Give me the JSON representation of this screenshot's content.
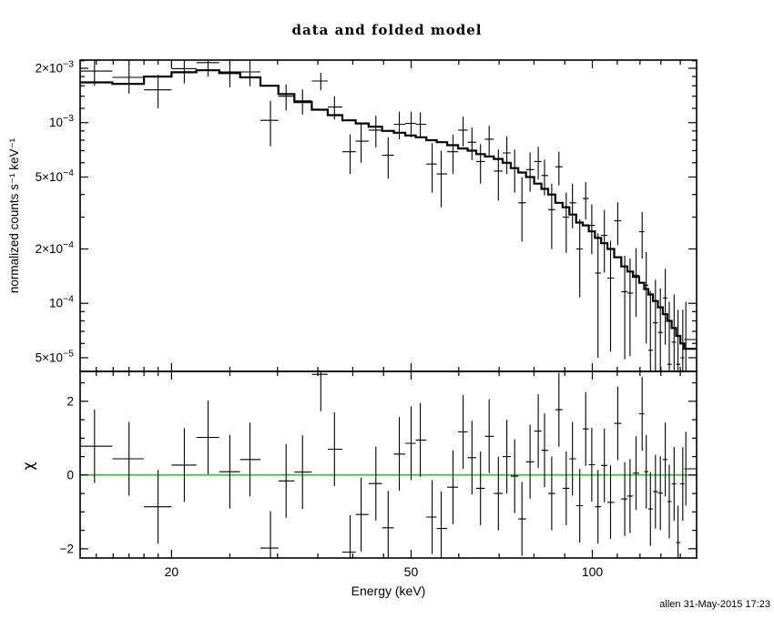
{
  "title": "data and folded model",
  "axes": {
    "x_label": "Energy (keV)",
    "y_label_top": "normalized counts s⁻¹ keV⁻¹",
    "y_label_bottom": "χ"
  },
  "footer": {
    "stamp": "allen 31-May-2015 17:23"
  },
  "colors": {
    "foreground": "#000000",
    "background": "#ffffff",
    "zero_line": "#00cc00"
  },
  "chart_data": [
    {
      "type": "scatter",
      "panel": "top",
      "title": "data and folded model",
      "xlabel": "Energy (keV)",
      "ylabel": "normalized counts s-1 keV-1",
      "xscale": "log",
      "yscale": "log",
      "xlim": [
        14.1,
        149
      ],
      "ylim": [
        4.2e-05,
        0.00222
      ],
      "grid": false,
      "legend": "none",
      "x_major_ticks": [
        {
          "v": 20,
          "label": "20"
        },
        {
          "v": 50,
          "label": "50"
        },
        {
          "v": 100,
          "label": "100"
        }
      ],
      "x_minor_ticks": [
        15,
        16,
        17,
        18,
        19,
        25,
        30,
        35,
        40,
        45,
        60,
        70,
        80,
        90,
        110,
        120,
        130,
        140
      ],
      "y_major_ticks": [
        {
          "v": 0.002,
          "mant": "2×10",
          "exp": "−3"
        },
        {
          "v": 0.001,
          "mant": "10",
          "exp": "−3"
        },
        {
          "v": 0.0005,
          "mant": "5×10",
          "exp": "−4"
        },
        {
          "v": 0.0002,
          "mant": "2×10",
          "exp": "−4"
        },
        {
          "v": 0.0001,
          "mant": "10",
          "exp": "−4"
        },
        {
          "v": 5e-05,
          "mant": "5×10",
          "exp": "−5"
        }
      ],
      "y_minor_ticks": [
        6e-05,
        7e-05,
        8e-05,
        9e-05,
        0.0003,
        0.0004,
        0.0006,
        0.0007,
        0.0008,
        0.0009,
        0.0012,
        0.0014,
        0.0016,
        0.0018,
        0.0022
      ],
      "x": [
        14.9,
        17,
        19,
        21,
        23,
        25,
        27,
        29.2,
        31,
        33,
        35.4,
        37.3,
        39.6,
        41.3,
        43.7,
        45.8,
        47.8,
        50,
        51.8,
        54.2,
        56.1,
        58.7,
        61,
        63.1,
        65.2,
        67.4,
        69.8,
        72.1,
        74.3,
        76.4,
        78.8,
        81.3,
        83.3,
        85.6,
        88,
        90.5,
        92.7,
        95.3,
        97.5,
        99.8,
        102.2,
        104.7,
        107.2,
        110.2,
        113.2,
        115.5,
        118.2,
        121,
        122.9,
        124.9,
        127.3,
        129.7,
        132.2,
        134.2,
        136.7,
        138.8,
        141.3,
        143
      ],
      "xerr": [
        1.05,
        1,
        1,
        1,
        1,
        1,
        1,
        1.1,
        0.9,
        1.1,
        1.2,
        0.95,
        1.2,
        0.85,
        1.2,
        1,
        1,
        1.1,
        0.9,
        1.2,
        1,
        1.3,
        1.1,
        1,
        1.1,
        1.1,
        1.2,
        1.1,
        1.1,
        1,
        1.2,
        1.2,
        1,
        1.2,
        1.2,
        1.2,
        1.1,
        1.3,
        1.1,
        1.2,
        1.2,
        1.2,
        1.3,
        1.5,
        1.5,
        1.2,
        1.4,
        1.3,
        1,
        1,
        1.2,
        1.2,
        1.2,
        1,
        1.2,
        1,
        1.2,
        0.9
      ],
      "series": [
        {
          "name": "data",
          "style": "errorbar-cross",
          "y": [
            0.00193,
            0.00178,
            0.00152,
            0.00199,
            0.00215,
            0.00191,
            0.00191,
            0.00103,
            0.0014,
            0.00132,
            0.0017,
            0.00122,
            0.00069,
            0.00079,
            0.00091,
            0.00066,
            0.00098,
            0.00099,
            0.00098,
            0.00059,
            0.00052,
            0.00069,
            0.00091,
            0.00078,
            0.00061,
            0.00081,
            0.00054,
            0.00068,
            0.00056,
            0.00036,
            0.00055,
            0.00061,
            0.00051,
            0.00033,
            0.00057,
            0.0003,
            0.00036,
            0.0002,
            0.00038,
            0.00027,
            0.000147,
            0.000238,
            0.000138,
            0.000286,
            0.000116,
            0.000114,
            0.000143,
            0.000249,
            0.000126,
            5.5e-05,
            7.8e-05,
            6.9e-05,
            0.000107,
            4.6e-05,
            6.1e-05,
            4.6e-05,
            5e-05,
            6.3e-05
          ],
          "yerr": [
            0.00033,
            0.00033,
            0.00032,
            0.00034,
            0.00035,
            0.00034,
            0.00032,
            0.00029,
            0.00023,
            0.00021,
            0.00019,
            0.00018,
            0.00017,
            0.00019,
            0.00018,
            0.00017,
            0.00017,
            0.00016,
            0.00016,
            0.00018,
            0.00018,
            0.00017,
            0.00017,
            0.00016,
            0.00015,
            0.00015,
            0.00017,
            0.00016,
            0.00015,
            0.00014,
            0.000135,
            0.000125,
            0.000115,
            0.00013,
            0.00012,
            0.00011,
            0.0001,
            9.2e-05,
            8.9e-05,
            8.3e-05,
            9.7e-05,
            9e-05,
            8.4e-05,
            7.6e-05,
            6.7e-05,
            6.3e-05,
            5.9e-05,
            7.2e-05,
            6.6e-05,
            6.2e-05,
            5.7e-05,
            5.2e-05,
            4.8e-05,
            5.6e-05,
            5.1e-05,
            4.6e-05,
            4.2e-05,
            3.9e-05
          ]
        },
        {
          "name": "folded model",
          "style": "step",
          "y": [
            0.00167,
            0.00164,
            0.0018,
            0.0019,
            0.00195,
            0.00188,
            0.00178,
            0.0016,
            0.00144,
            0.0013,
            0.00118,
            0.0011,
            0.00103,
            0.00099,
            0.00095,
            0.0009,
            0.00088,
            0.00085,
            0.00083,
            0.0008,
            0.00078,
            0.00075,
            0.00072,
            0.0007,
            0.00067,
            0.00065,
            0.00063,
            0.0006,
            0.00056,
            0.00053,
            0.0005,
            0.00046,
            0.00043,
            0.0004,
            0.00036,
            0.00034,
            0.00031,
            0.00028,
            0.00027,
            0.00025,
            0.00023,
            0.000215,
            0.0002,
            0.00018,
            0.00016,
            0.00015,
            0.00014,
            0.00013,
            0.00012,
            0.000112,
            0.000103,
            9.5e-05,
            8.7e-05,
            8e-05,
            7.3e-05,
            6.6e-05,
            6e-05,
            5.6e-05
          ]
        }
      ]
    },
    {
      "type": "scatter",
      "panel": "bottom",
      "xlabel": "Energy (keV)",
      "ylabel": "chi",
      "xscale": "log",
      "yscale": "linear",
      "xlim": [
        14.1,
        149
      ],
      "ylim": [
        -2.25,
        2.81
      ],
      "grid": false,
      "legend": "none",
      "y_major_ticks": [
        {
          "v": 2,
          "mant": "2"
        },
        {
          "v": 0,
          "mant": "0"
        },
        {
          "v": -2,
          "mant": "−2"
        }
      ],
      "y_minor_ticks": [
        -1.5,
        -1,
        -0.5,
        0.5,
        1,
        1.5,
        2.5
      ],
      "zero_line": 0,
      "series": [
        {
          "name": "chi residuals",
          "style": "errorbar-cross",
          "y": [
            0.78,
            0.44,
            -0.86,
            0.27,
            1.02,
            0.09,
            0.42,
            -1.98,
            -0.16,
            0.08,
            2.73,
            0.7,
            -2.09,
            -1.07,
            -0.23,
            -1.43,
            0.57,
            0.86,
            0.95,
            -1.14,
            -1.45,
            -0.33,
            1.17,
            0.47,
            -0.36,
            1.05,
            -0.5,
            0.5,
            -0.03,
            -1.19,
            0.36,
            1.19,
            0.67,
            -0.5,
            1.77,
            -0.36,
            0.44,
            -0.83,
            1.25,
            0.28,
            -0.86,
            0.26,
            -0.74,
            1.4,
            -0.65,
            -0.57,
            0.05,
            1.66,
            0.09,
            -0.92,
            -0.45,
            -0.49,
            0.42,
            -0.72,
            -0.24,
            -1.83,
            -0.24,
            0.17
          ],
          "yerr_const": 1.0
        }
      ]
    }
  ]
}
